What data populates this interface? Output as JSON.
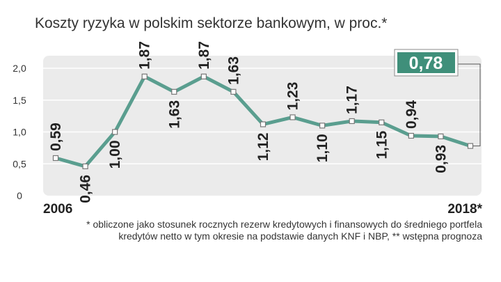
{
  "title": "Koszty ryzyka w polskim sektorze bankowym, w proc.*",
  "footnote_line1": "* obliczone jako stosunek rocznych rezerw kredytowych i finansowych do średniego portfela",
  "footnote_line2": "kredytów netto w tym okresie na podstawie danych KNF i NBP, ** wstępna prognoza",
  "colors": {
    "line": "#5a9e8f",
    "callout_fill": "#3f8f7a",
    "plot_bg": "#ebebeb",
    "grid": "#ffffff"
  },
  "chart_data": {
    "type": "line",
    "title": "Koszty ryzyka w polskim sektorze bankowym, w proc.*",
    "x_start_label": "2006",
    "x_end_label": "2018*",
    "yticks": [
      "0",
      "0,5",
      "1,0",
      "1,5",
      "2,0"
    ],
    "ylim": [
      0,
      2.0
    ],
    "grid": true,
    "values": [
      0.59,
      0.46,
      1.0,
      1.87,
      1.63,
      1.87,
      1.63,
      1.12,
      1.23,
      1.1,
      1.17,
      1.15,
      0.94,
      0.93,
      0.78
    ],
    "labels": [
      "0,59",
      "0,46",
      "1,00",
      "1,87",
      "1,63",
      "1,87",
      "1,63",
      "1,12",
      "1,23",
      "1,10",
      "1,17",
      "1,15",
      "0,94",
      "0,93",
      ""
    ],
    "callout": "0,78"
  }
}
